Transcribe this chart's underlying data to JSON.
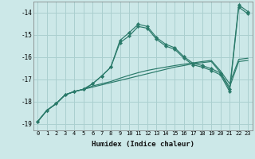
{
  "xlabel": "Humidex (Indice chaleur)",
  "bg_color": "#cce8e8",
  "grid_color": "#aacfcf",
  "line_color": "#2a7a6a",
  "ylim": [
    -19.3,
    -13.5
  ],
  "xlim": [
    -0.5,
    23.5
  ],
  "yticks": [
    -19,
    -18,
    -17,
    -16,
    -15,
    -14
  ],
  "xticks": [
    0,
    1,
    2,
    3,
    4,
    5,
    6,
    7,
    8,
    9,
    10,
    11,
    12,
    13,
    14,
    15,
    16,
    17,
    18,
    19,
    20,
    21,
    22,
    23
  ],
  "series": [
    {
      "x": [
        0,
        1,
        2,
        3,
        4,
        5,
        6,
        7,
        8,
        9,
        10,
        11,
        12,
        13,
        14,
        15,
        16,
        17,
        18,
        19,
        20,
        21,
        22,
        23
      ],
      "y": [
        -18.9,
        -18.4,
        -18.1,
        -17.7,
        -17.55,
        -17.45,
        -17.35,
        -17.25,
        -17.15,
        -17.05,
        -16.95,
        -16.85,
        -16.75,
        -16.65,
        -16.55,
        -16.45,
        -16.38,
        -16.3,
        -16.25,
        -16.2,
        -16.7,
        -17.35,
        -16.2,
        -16.15
      ],
      "marker": false
    },
    {
      "x": [
        0,
        1,
        2,
        3,
        4,
        5,
        6,
        7,
        8,
        9,
        10,
        11,
        12,
        13,
        14,
        15,
        16,
        17,
        18,
        19,
        20,
        21,
        22,
        23
      ],
      "y": [
        -18.9,
        -18.4,
        -18.1,
        -17.7,
        -17.55,
        -17.45,
        -17.3,
        -17.2,
        -17.1,
        -16.95,
        -16.82,
        -16.7,
        -16.6,
        -16.52,
        -16.45,
        -16.38,
        -16.32,
        -16.26,
        -16.2,
        -16.15,
        -16.62,
        -17.2,
        -16.1,
        -16.05
      ],
      "marker": false
    },
    {
      "x": [
        0,
        1,
        2,
        3,
        4,
        5,
        6,
        7,
        8,
        9,
        10,
        11,
        12,
        13,
        14,
        15,
        16,
        17,
        18,
        19,
        20,
        21,
        22,
        23
      ],
      "y": [
        -18.9,
        -18.4,
        -18.1,
        -17.7,
        -17.55,
        -17.45,
        -17.2,
        -16.85,
        -16.45,
        -15.35,
        -15.05,
        -14.62,
        -14.7,
        -15.2,
        -15.5,
        -15.65,
        -16.05,
        -16.35,
        -16.45,
        -16.6,
        -16.8,
        -17.55,
        -13.75,
        -14.05
      ],
      "marker": true
    },
    {
      "x": [
        0,
        1,
        2,
        3,
        4,
        5,
        6,
        7,
        8,
        9,
        10,
        11,
        12,
        13,
        14,
        15,
        16,
        17,
        18,
        19,
        20,
        21,
        22,
        23
      ],
      "y": [
        -18.9,
        -18.4,
        -18.1,
        -17.7,
        -17.55,
        -17.45,
        -17.2,
        -16.85,
        -16.45,
        -15.25,
        -14.9,
        -14.52,
        -14.62,
        -15.12,
        -15.42,
        -15.58,
        -15.98,
        -16.28,
        -16.38,
        -16.52,
        -16.72,
        -17.45,
        -13.65,
        -13.95
      ],
      "marker": true
    }
  ]
}
